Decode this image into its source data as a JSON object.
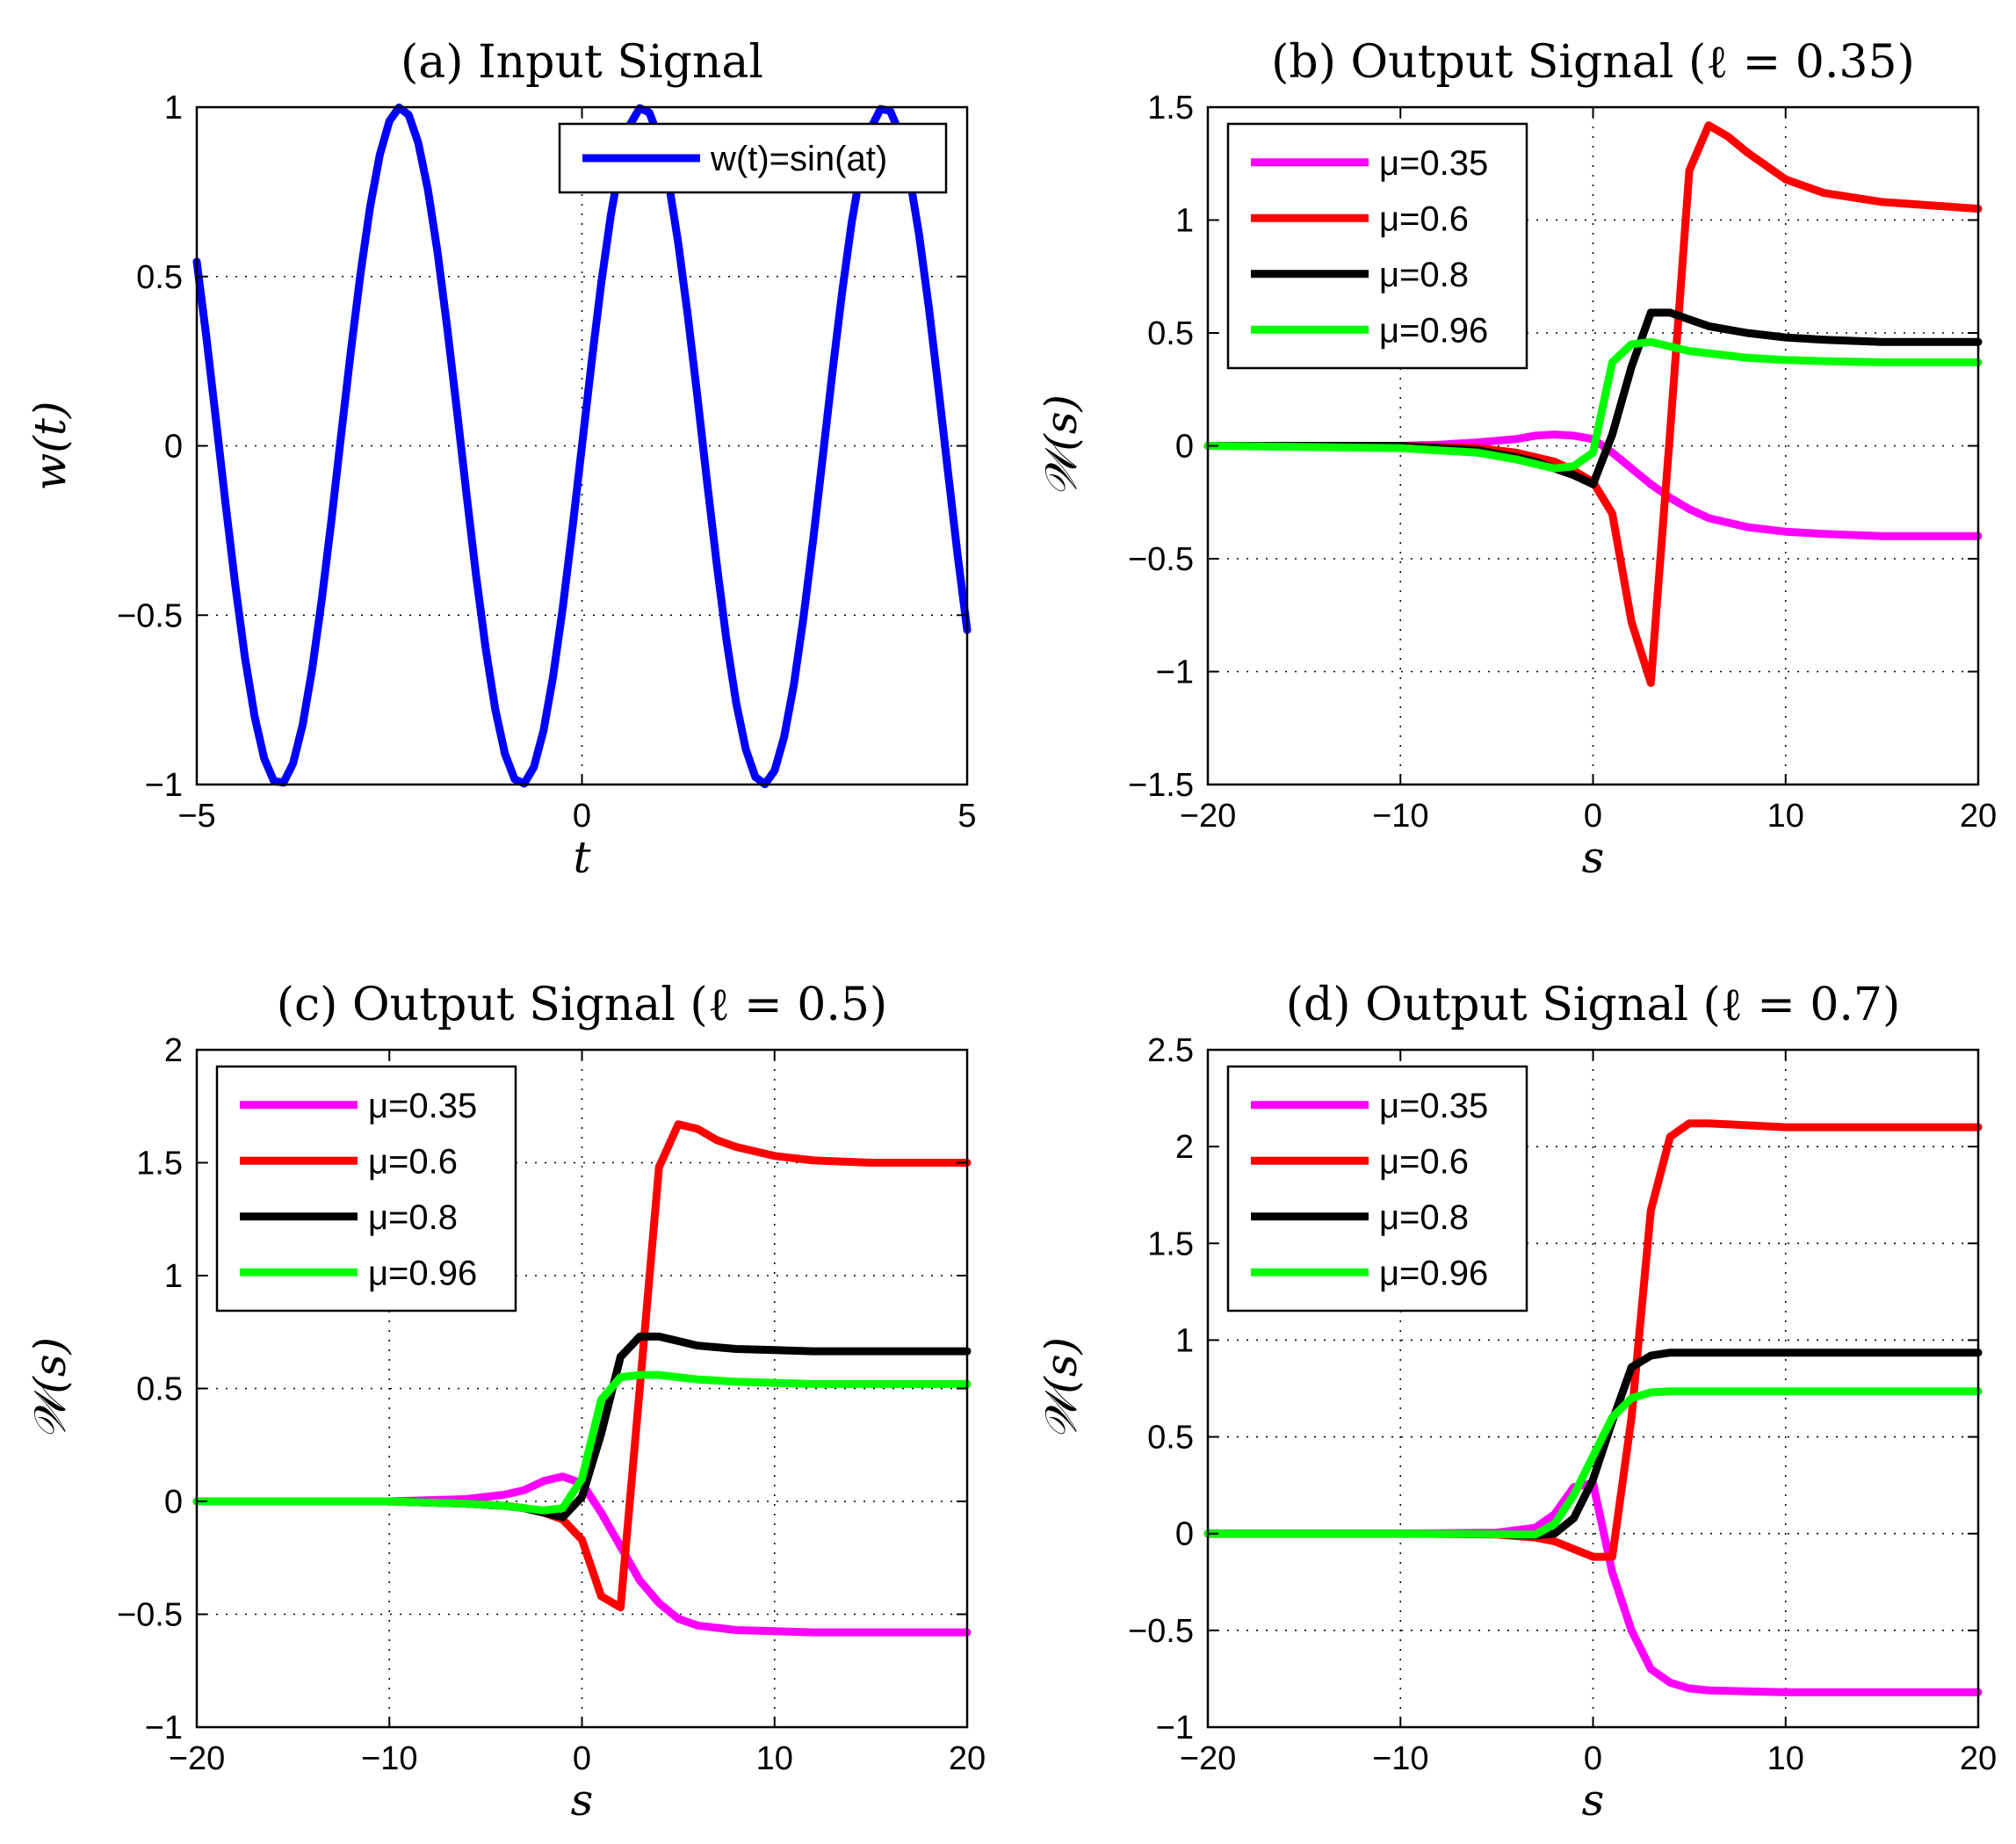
{
  "colors": {
    "blue": "#0000ff",
    "magenta": "#ff00ff",
    "red": "#ff0000",
    "black": "#000000",
    "green": "#00ff00"
  },
  "chart_data": [
    {
      "type": "line",
      "title": "(a) Input Signal",
      "xlabel": "t",
      "ylabel": "w(t)",
      "xlim": [
        -5,
        5
      ],
      "ylim": [
        -1,
        1
      ],
      "xticks": [
        -5,
        0,
        5
      ],
      "yticks": [
        -1,
        -0.5,
        0,
        0.5,
        1
      ],
      "xtick_labels": [
        "−5",
        "0",
        "5"
      ],
      "ytick_labels": [
        "−1",
        "−0.5",
        "0",
        "0.5",
        "1"
      ],
      "grid": true,
      "legend_position": "top-right",
      "series": [
        {
          "name": "w(t)=sin(at)",
          "color": "blue",
          "function": "sin",
          "a": 2,
          "x_range": [
            -5,
            5
          ],
          "samples": 81
        }
      ]
    },
    {
      "type": "line",
      "title": "(b) Output Signal (ℓ = 0.35)",
      "xlabel": "s",
      "ylabel": "𝒲(s)",
      "xlim": [
        -20,
        20
      ],
      "ylim": [
        -1.5,
        1.5
      ],
      "xticks": [
        -20,
        -10,
        0,
        10,
        20
      ],
      "yticks": [
        -1.5,
        -1,
        -0.5,
        0,
        0.5,
        1,
        1.5
      ],
      "xtick_labels": [
        "−20",
        "−10",
        "0",
        "10",
        "20"
      ],
      "ytick_labels": [
        "−1.5",
        "−1",
        "−0.5",
        "0",
        "0.5",
        "1",
        "1.5"
      ],
      "grid": true,
      "legend_position": "top-left",
      "series": [
        {
          "name": "μ=0.35",
          "color": "magenta",
          "x": [
            -20,
            -10,
            -8,
            -6,
            -4,
            -3,
            -2,
            -1,
            0,
            1,
            2,
            3,
            4,
            5,
            6,
            8,
            10,
            12,
            15,
            20
          ],
          "y": [
            0,
            0,
            0.005,
            0.015,
            0.03,
            0.045,
            0.05,
            0.045,
            0.03,
            -0.03,
            -0.1,
            -0.17,
            -0.23,
            -0.28,
            -0.32,
            -0.36,
            -0.38,
            -0.39,
            -0.4,
            -0.4
          ]
        },
        {
          "name": "μ=0.6",
          "color": "red",
          "x": [
            -20,
            -10,
            -6,
            -4,
            -3,
            -2,
            -1,
            0,
            1,
            2,
            3,
            4,
            5,
            6,
            7,
            8,
            10,
            12,
            15,
            20
          ],
          "y": [
            0,
            0,
            -0.01,
            -0.03,
            -0.05,
            -0.07,
            -0.11,
            -0.16,
            -0.3,
            -0.78,
            -1.05,
            0.06,
            1.22,
            1.42,
            1.37,
            1.3,
            1.18,
            1.12,
            1.08,
            1.05
          ]
        },
        {
          "name": "μ=0.8",
          "color": "black",
          "x": [
            -20,
            -10,
            -6,
            -4,
            -3,
            -2,
            -1,
            0,
            1,
            2,
            3,
            4,
            5,
            6,
            8,
            10,
            12,
            15,
            20
          ],
          "y": [
            0,
            0,
            -0.02,
            -0.05,
            -0.07,
            -0.1,
            -0.13,
            -0.17,
            0.05,
            0.35,
            0.59,
            0.59,
            0.56,
            0.53,
            0.5,
            0.48,
            0.47,
            0.46,
            0.46
          ]
        },
        {
          "name": "μ=0.96",
          "color": "green",
          "x": [
            -20,
            -10,
            -6,
            -4,
            -3,
            -2,
            -1,
            0,
            1,
            2,
            3,
            4,
            5,
            6,
            8,
            10,
            12,
            15,
            20
          ],
          "y": [
            0,
            -0.01,
            -0.03,
            -0.06,
            -0.08,
            -0.1,
            -0.09,
            -0.03,
            0.37,
            0.45,
            0.46,
            0.44,
            0.42,
            0.41,
            0.39,
            0.38,
            0.375,
            0.37,
            0.37
          ]
        }
      ]
    },
    {
      "type": "line",
      "title": "(c)  Output Signal (ℓ = 0.5)",
      "xlabel": "s",
      "ylabel": "𝒲(s)",
      "xlim": [
        -20,
        20
      ],
      "ylim": [
        -1,
        2
      ],
      "xticks": [
        -20,
        -10,
        0,
        10,
        20
      ],
      "yticks": [
        -1,
        -0.5,
        0,
        0.5,
        1,
        1.5,
        2
      ],
      "xtick_labels": [
        "−20",
        "−10",
        "0",
        "10",
        "20"
      ],
      "ytick_labels": [
        "−1",
        "−0.5",
        "0",
        "0.5",
        "1",
        "1.5",
        "2"
      ],
      "grid": true,
      "legend_position": "top-left",
      "series": [
        {
          "name": "μ=0.35",
          "color": "magenta",
          "x": [
            -20,
            -10,
            -6,
            -4,
            -3,
            -2,
            -1,
            0,
            1,
            2,
            3,
            4,
            5,
            6,
            8,
            10,
            12,
            15,
            20
          ],
          "y": [
            0,
            0,
            0.01,
            0.03,
            0.05,
            0.09,
            0.11,
            0.08,
            -0.05,
            -0.2,
            -0.35,
            -0.45,
            -0.52,
            -0.55,
            -0.57,
            -0.575,
            -0.58,
            -0.58,
            -0.58
          ]
        },
        {
          "name": "μ=0.6",
          "color": "red",
          "x": [
            -20,
            -10,
            -6,
            -4,
            -3,
            -2,
            -1,
            0,
            1,
            2,
            3,
            4,
            5,
            6,
            7,
            8,
            10,
            12,
            15,
            20
          ],
          "y": [
            0,
            0,
            -0.01,
            -0.02,
            -0.03,
            -0.05,
            -0.08,
            -0.17,
            -0.42,
            -0.47,
            0.5,
            1.48,
            1.67,
            1.65,
            1.6,
            1.57,
            1.53,
            1.51,
            1.5,
            1.5
          ]
        },
        {
          "name": "μ=0.8",
          "color": "black",
          "x": [
            -20,
            -10,
            -6,
            -4,
            -3,
            -2,
            -1,
            0,
            1,
            2,
            3,
            4,
            5,
            6,
            8,
            10,
            12,
            15,
            20
          ],
          "y": [
            0,
            0,
            -0.01,
            -0.02,
            -0.03,
            -0.05,
            -0.07,
            0.02,
            0.3,
            0.64,
            0.73,
            0.73,
            0.71,
            0.69,
            0.675,
            0.67,
            0.665,
            0.665,
            0.665
          ]
        },
        {
          "name": "μ=0.96",
          "color": "green",
          "x": [
            -20,
            -10,
            -6,
            -4,
            -3,
            -2,
            -1,
            0,
            1,
            2,
            3,
            4,
            5,
            6,
            8,
            10,
            12,
            15,
            20
          ],
          "y": [
            0,
            0,
            -0.01,
            -0.02,
            -0.03,
            -0.04,
            -0.03,
            0.1,
            0.45,
            0.55,
            0.56,
            0.56,
            0.55,
            0.54,
            0.53,
            0.525,
            0.52,
            0.52,
            0.52
          ]
        }
      ]
    },
    {
      "type": "line",
      "title": "(d)  Output Signal (ℓ = 0.7)",
      "xlabel": "s",
      "ylabel": "𝒲(s)",
      "xlim": [
        -20,
        20
      ],
      "ylim": [
        -1,
        2.5
      ],
      "xticks": [
        -20,
        -10,
        0,
        10,
        20
      ],
      "yticks": [
        -1,
        -0.5,
        0,
        0.5,
        1,
        1.5,
        2,
        2.5
      ],
      "xtick_labels": [
        "−20",
        "−10",
        "0",
        "10",
        "20"
      ],
      "ytick_labels": [
        "−1",
        "−0.5",
        "0",
        "0.5",
        "1",
        "1.5",
        "2",
        "2.5"
      ],
      "grid": true,
      "legend_position": "top-left",
      "series": [
        {
          "name": "μ=0.35",
          "color": "magenta",
          "x": [
            -20,
            -10,
            -5,
            -3,
            -2,
            -1,
            0,
            1,
            2,
            3,
            4,
            5,
            6,
            8,
            10,
            15,
            20
          ],
          "y": [
            0,
            0,
            0.005,
            0.03,
            0.1,
            0.24,
            0.26,
            -0.2,
            -0.5,
            -0.7,
            -0.77,
            -0.8,
            -0.81,
            -0.815,
            -0.82,
            -0.82,
            -0.82
          ]
        },
        {
          "name": "μ=0.6",
          "color": "red",
          "x": [
            -20,
            -10,
            -5,
            -3,
            -2,
            -1,
            0,
            1,
            2,
            3,
            4,
            5,
            6,
            8,
            10,
            15,
            20
          ],
          "y": [
            0,
            0,
            -0.005,
            -0.02,
            -0.04,
            -0.08,
            -0.12,
            -0.12,
            0.6,
            1.67,
            2.05,
            2.12,
            2.12,
            2.11,
            2.1,
            2.1,
            2.1
          ]
        },
        {
          "name": "μ=0.8",
          "color": "black",
          "x": [
            -20,
            -10,
            -5,
            -3,
            -2,
            -1,
            0,
            1,
            2,
            3,
            4,
            5,
            6,
            8,
            10,
            15,
            20
          ],
          "y": [
            0,
            0,
            -0.003,
            -0.01,
            0,
            0.08,
            0.28,
            0.58,
            0.86,
            0.92,
            0.935,
            0.935,
            0.935,
            0.935,
            0.935,
            0.935,
            0.935
          ]
        },
        {
          "name": "μ=0.96",
          "color": "green",
          "x": [
            -20,
            -10,
            -5,
            -3,
            -2,
            -1,
            0,
            1,
            2,
            3,
            4,
            5,
            6,
            8,
            10,
            15,
            20
          ],
          "y": [
            0,
            0,
            -0.003,
            -0.005,
            0.05,
            0.2,
            0.4,
            0.6,
            0.7,
            0.73,
            0.735,
            0.735,
            0.735,
            0.735,
            0.735,
            0.735,
            0.735
          ]
        }
      ]
    }
  ]
}
